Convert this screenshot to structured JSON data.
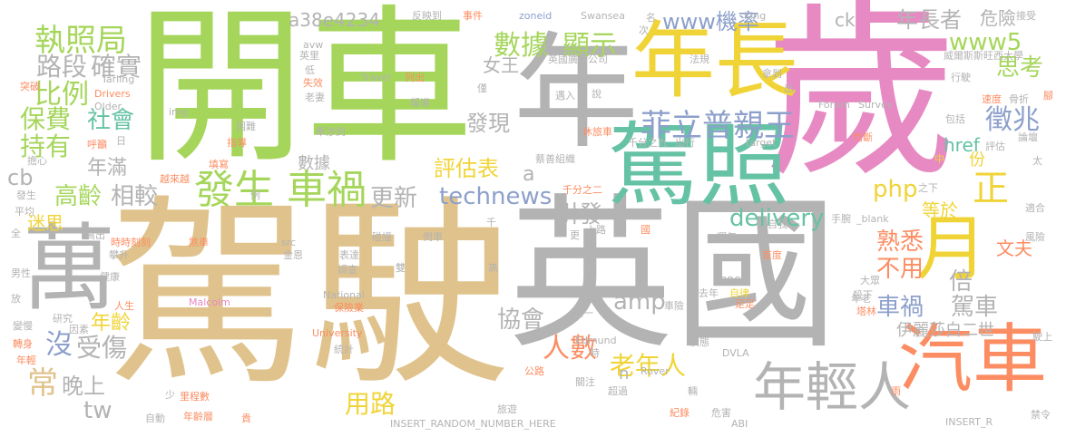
{
  "words": [
    {
      "text": "駕駛",
      "color": "tan"
    },
    {
      "text": "開車",
      "color": "green"
    },
    {
      "text": "歲",
      "color": "pink"
    },
    {
      "text": "年",
      "color": "gray"
    },
    {
      "text": "英國",
      "color": "gray"
    },
    {
      "text": "駕照",
      "color": "mint"
    },
    {
      "text": "年長",
      "color": "yellow"
    },
    {
      "text": "萬",
      "color": "gray"
    },
    {
      "text": "汽車",
      "color": "orange"
    },
    {
      "text": "年輕人",
      "color": "gray"
    },
    {
      "text": "月",
      "color": "yellow"
    },
    {
      "text": "發生",
      "color": "green"
    },
    {
      "text": "車禍",
      "color": "green"
    },
    {
      "text": "菲立普親王",
      "color": "blue"
    },
    {
      "text": "數據",
      "color": "green"
    },
    {
      "text": "顯示",
      "color": "green"
    },
    {
      "text": "執照局",
      "color": "green"
    },
    {
      "text": "路段",
      "color": "gray"
    },
    {
      "text": "確實",
      "color": "gray"
    },
    {
      "text": "比例",
      "color": "green"
    },
    {
      "text": "保費",
      "color": "green"
    },
    {
      "text": "持有",
      "color": "green"
    },
    {
      "text": "社會",
      "color": "mint"
    },
    {
      "text": "年滿",
      "color": "gray"
    },
    {
      "text": "高齡",
      "color": "green"
    },
    {
      "text": "相較",
      "color": "gray"
    },
    {
      "text": "迷思",
      "color": "yellow"
    },
    {
      "text": "常",
      "color": "tan"
    },
    {
      "text": "晚上",
      "color": "gray"
    },
    {
      "text": "沒",
      "color": "blue"
    },
    {
      "text": "受傷",
      "color": "gray"
    },
    {
      "text": "年齡",
      "color": "yellow"
    },
    {
      "text": "tw",
      "color": "gray"
    },
    {
      "text": "cb",
      "color": "gray"
    },
    {
      "text": "更新",
      "color": "gray"
    },
    {
      "text": "technews",
      "color": "blue"
    },
    {
      "text": "評估表",
      "color": "yellow"
    },
    {
      "text": "引發",
      "color": "gray"
    },
    {
      "text": "delivery",
      "color": "mint"
    },
    {
      "text": "php",
      "color": "yellow"
    },
    {
      "text": "熟悉",
      "color": "orange"
    },
    {
      "text": "不用",
      "color": "orange"
    },
    {
      "text": "倍",
      "color": "gray"
    },
    {
      "text": "車禍",
      "color": "blue"
    },
    {
      "text": "駕車",
      "color": "gray"
    },
    {
      "text": "協會",
      "color": "gray"
    },
    {
      "text": "amp",
      "color": "gray"
    },
    {
      "text": "人數",
      "color": "orange"
    },
    {
      "text": "老年人",
      "color": "yellow"
    },
    {
      "text": "用路",
      "color": "yellow"
    },
    {
      "text": "伊麗莎白二世",
      "color": "gray"
    },
    {
      "text": "文夫",
      "color": "orange"
    },
    {
      "text": "等於",
      "color": "yellow"
    },
    {
      "text": "正",
      "color": "yellow"
    },
    {
      "text": "徵兆",
      "color": "blue"
    },
    {
      "text": "思考",
      "color": "green"
    },
    {
      "text": "www5",
      "color": "green"
    },
    {
      "text": "年長者",
      "color": "gray"
    },
    {
      "text": "危險",
      "color": "gray"
    },
    {
      "text": "www機率",
      "color": "blue"
    },
    {
      "text": "發現",
      "color": "gray"
    },
    {
      "text": "女王",
      "color": "gray"
    },
    {
      "text": "a38e4234",
      "color": "gray"
    },
    {
      "text": "href",
      "color": "mint"
    },
    {
      "text": "份",
      "color": "yellow"
    },
    {
      "text": "ck",
      "color": "gray"
    },
    {
      "text": "數據",
      "color": "gray"
    },
    {
      "text": "a",
      "color": "gray"
    },
    {
      "text": "n",
      "color": "gray"
    },
    {
      "text": "反映到",
      "color": "gray"
    },
    {
      "text": "事件",
      "color": "orange"
    },
    {
      "text": "zoneid",
      "color": "blue"
    },
    {
      "text": "Swansea",
      "color": "gray"
    },
    {
      "text": "King",
      "color": "gray"
    },
    {
      "text": "接受",
      "color": "gray"
    },
    {
      "text": "英國廣播公司",
      "color": "gray"
    },
    {
      "text": "威爾斯斯旺西大學",
      "color": "gray"
    },
    {
      "text": "法規",
      "color": "gray"
    },
    {
      "text": "拿到",
      "color": "gray"
    },
    {
      "text": "行駛",
      "color": "gray"
    },
    {
      "text": "Forum",
      "color": "gray"
    },
    {
      "text": "Survey",
      "color": "gray"
    },
    {
      "text": "速度",
      "color": "orange"
    },
    {
      "text": "骨折",
      "color": "gray"
    },
    {
      "text": "腳",
      "color": "orange"
    },
    {
      "text": "包括",
      "color": "gray"
    },
    {
      "text": "評估",
      "color": "gray"
    },
    {
      "text": "論壇",
      "color": "gray"
    },
    {
      "text": "太",
      "color": "gray"
    },
    {
      "text": "判斷",
      "color": "orange"
    },
    {
      "text": "中",
      "color": "yellow"
    },
    {
      "text": "手腕",
      "color": "gray"
    },
    {
      "text": "_blank",
      "color": "gray"
    },
    {
      "text": "適合",
      "color": "gray"
    },
    {
      "text": "風險",
      "color": "gray"
    },
    {
      "text": "年老",
      "color": "gray"
    },
    {
      "text": "大眾",
      "color": "gray"
    },
    {
      "text": "塔林",
      "color": "orange"
    },
    {
      "text": "駛上",
      "color": "gray"
    },
    {
      "text": "禁令",
      "color": "gray"
    },
    {
      "text": "INSERT_R",
      "color": "gray"
    },
    {
      "text": "自我",
      "color": "gray"
    },
    {
      "text": "Range",
      "color": "gray"
    },
    {
      "text": "運年",
      "color": "gray"
    },
    {
      "text": "首度",
      "color": "orange"
    },
    {
      "text": "去年",
      "color": "gray"
    },
    {
      "text": "BBC",
      "color": "gray"
    },
    {
      "text": "自律",
      "color": "yellow"
    },
    {
      "text": "足足",
      "color": "orange"
    },
    {
      "text": "殺下",
      "color": "gray"
    },
    {
      "text": "總裁",
      "color": "gray"
    },
    {
      "text": "車險",
      "color": "gray"
    },
    {
      "text": "唯一",
      "color": "gray"
    },
    {
      "text": "狀態",
      "color": "gray"
    },
    {
      "text": "DVLA",
      "color": "gray"
    },
    {
      "text": "Rover",
      "color": "gray"
    },
    {
      "text": "超過",
      "color": "gray"
    },
    {
      "text": "危害",
      "color": "gray"
    },
    {
      "text": "紀錄",
      "color": "orange"
    },
    {
      "text": "ABI",
      "color": "gray"
    },
    {
      "text": "INSERT_RANDOM_NUMBER_HERE",
      "color": "gray"
    },
    {
      "text": "旅遊",
      "color": "gray"
    },
    {
      "text": "年齡層",
      "color": "orange"
    },
    {
      "text": "里程數",
      "color": "orange"
    },
    {
      "text": "自動",
      "color": "gray"
    },
    {
      "text": "少",
      "color": "gray"
    },
    {
      "text": "公路",
      "color": "orange"
    },
    {
      "text": "Edmund",
      "color": "gray"
    },
    {
      "text": "University",
      "color": "orange"
    },
    {
      "text": "統計",
      "color": "gray"
    },
    {
      "text": "National",
      "color": "gray"
    },
    {
      "text": "Malcolm",
      "color": "pink"
    },
    {
      "text": "保險業",
      "color": "orange"
    },
    {
      "text": "金恩",
      "color": "gray"
    },
    {
      "text": "調查",
      "color": "gray"
    },
    {
      "text": "表達",
      "color": "gray"
    },
    {
      "text": "碰撞",
      "color": "gray"
    },
    {
      "text": "倒車",
      "color": "gray"
    },
    {
      "text": "src",
      "color": "gray"
    },
    {
      "text": "時時刻刻",
      "color": "orange"
    },
    {
      "text": "攀升",
      "color": "gray"
    },
    {
      "text": "煞車",
      "color": "orange"
    },
    {
      "text": "健康",
      "color": "gray"
    },
    {
      "text": "人生",
      "color": "orange"
    },
    {
      "text": "研究",
      "color": "gray"
    },
    {
      "text": "因素",
      "color": "gray"
    },
    {
      "text": "變慢",
      "color": "gray"
    },
    {
      "text": "轉身",
      "color": "orange"
    },
    {
      "text": "年輕",
      "color": "orange"
    },
    {
      "text": "男性",
      "color": "gray"
    },
    {
      "text": "放",
      "color": "gray"
    },
    {
      "text": "全",
      "color": "gray"
    },
    {
      "text": "高出",
      "color": "gray"
    },
    {
      "text": "平均",
      "color": "gray"
    },
    {
      "text": "發生",
      "color": "gray"
    },
    {
      "text": "擔心",
      "color": "gray"
    },
    {
      "text": "越來越",
      "color": "orange"
    },
    {
      "text": "填寫",
      "color": "orange"
    },
    {
      "text": "蔡善組織",
      "color": "gray"
    },
    {
      "text": "千分之二",
      "color": "orange"
    },
    {
      "text": "千分之九",
      "color": "gray"
    },
    {
      "text": "出行",
      "color": "gray"
    },
    {
      "text": "target",
      "color": "gray"
    },
    {
      "text": "休旅車",
      "color": "orange"
    },
    {
      "text": "遇入",
      "color": "gray"
    },
    {
      "text": "牽涉到",
      "color": "gray"
    },
    {
      "text": "指導",
      "color": "orange"
    },
    {
      "text": "呼籲",
      "color": "orange"
    },
    {
      "text": "困難",
      "color": "gray"
    },
    {
      "text": "img",
      "color": "gray"
    },
    {
      "text": "老妻",
      "color": "gray"
    },
    {
      "text": "失效",
      "color": "orange"
    },
    {
      "text": "英里",
      "color": "gray"
    },
    {
      "text": "avw",
      "color": "gray"
    },
    {
      "text": "Travel",
      "color": "gray"
    },
    {
      "text": "列出",
      "color": "orange"
    },
    {
      "text": "報導",
      "color": "gray"
    },
    {
      "text": "僅",
      "color": "gray"
    },
    {
      "text": "Tarling",
      "color": "gray"
    },
    {
      "text": "Drivers",
      "color": "orange"
    },
    {
      "text": "Older",
      "color": "gray"
    },
    {
      "text": "突破",
      "color": "orange"
    },
    {
      "text": "日",
      "color": "gray"
    },
    {
      "text": "例",
      "color": "gray"
    },
    {
      "text": "千",
      "color": "gray"
    },
    {
      "text": "上路",
      "color": "gray"
    },
    {
      "text": "更",
      "color": "gray"
    },
    {
      "text": "國",
      "color": "orange"
    },
    {
      "text": "高",
      "color": "gray"
    },
    {
      "text": "雙",
      "color": "gray"
    },
    {
      "text": "時",
      "color": "gray"
    },
    {
      "text": "關注",
      "color": "gray"
    },
    {
      "text": "輛",
      "color": "gray"
    },
    {
      "text": "雨",
      "color": "orange"
    },
    {
      "text": "貴",
      "color": "orange"
    },
    {
      "text": "名",
      "color": "gray"
    },
    {
      "text": "次",
      "color": "gray"
    },
    {
      "text": "出",
      "color": "gray"
    },
    {
      "text": "說",
      "color": "gray"
    },
    {
      "text": "低",
      "color": "gray"
    },
    {
      "text": "之下",
      "color": "gray"
    }
  ]
}
